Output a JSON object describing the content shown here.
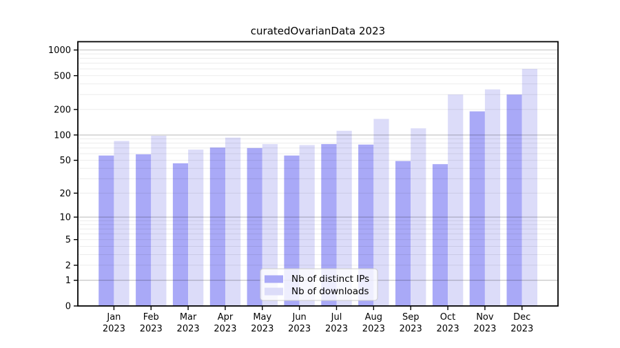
{
  "chart_data": {
    "type": "bar",
    "title": "curatedOvarianData 2023",
    "categories": [
      "Jan 2023",
      "Feb 2023",
      "Mar 2023",
      "Apr 2023",
      "May 2023",
      "Jun 2023",
      "Jul 2023",
      "Aug 2023",
      "Sep 2023",
      "Oct 2023",
      "Nov 2023",
      "Dec 2023"
    ],
    "series": [
      {
        "name": "Nb of distinct IPs",
        "color": "#a9a9f7",
        "values": [
          57,
          59,
          46,
          71,
          70,
          57,
          78,
          77,
          49,
          45,
          190,
          300
        ]
      },
      {
        "name": "Nb of downloads",
        "color": "#dcdcf9",
        "values": [
          85,
          98,
          67,
          93,
          78,
          76,
          112,
          155,
          120,
          300,
          345,
          600
        ]
      }
    ],
    "xlabel": "",
    "ylabel": "",
    "yscale": "log1p",
    "yticks": [
      0,
      1,
      2,
      5,
      10,
      20,
      50,
      100,
      200,
      500,
      1000
    ],
    "ylim": [
      0,
      1270
    ],
    "grid": true,
    "legend": {
      "position": "lower-center",
      "entries": [
        "Nb of distinct IPs",
        "Nb of downloads"
      ]
    }
  }
}
